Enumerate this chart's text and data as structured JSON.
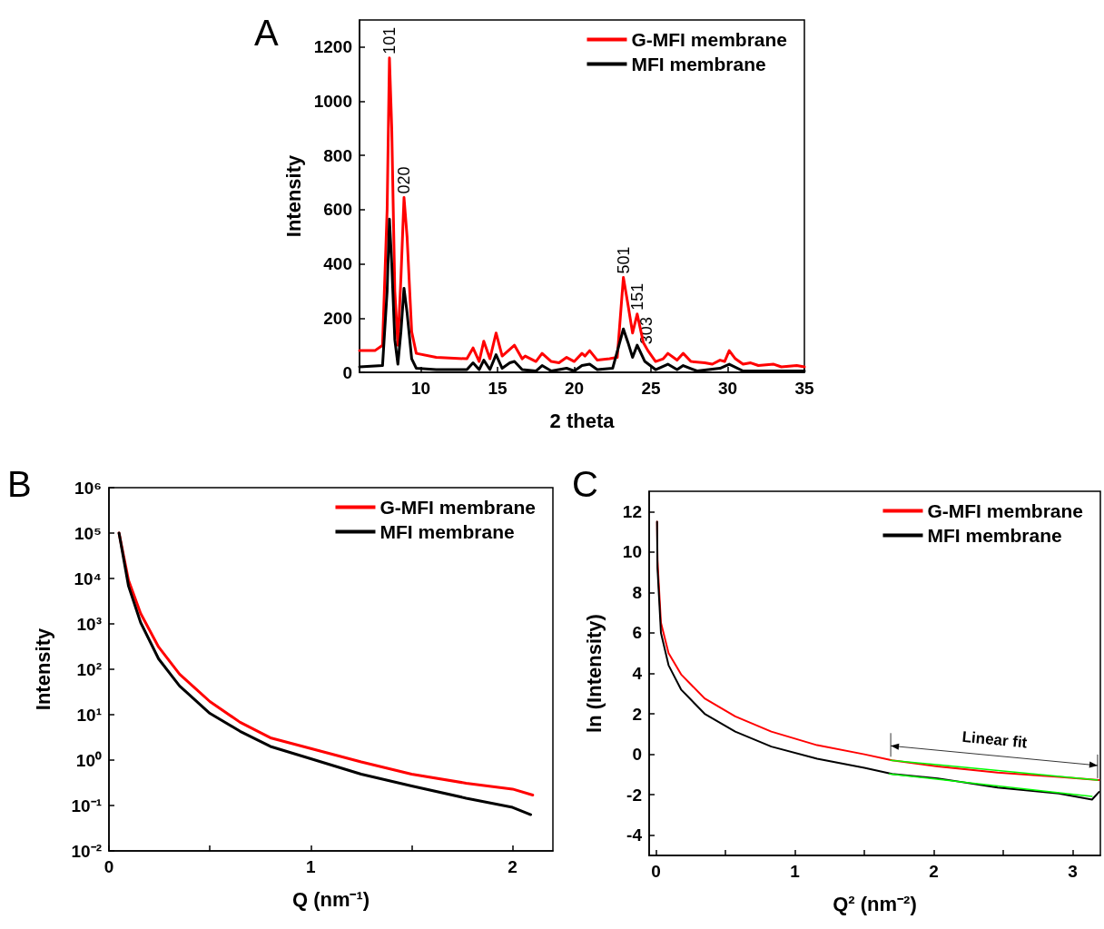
{
  "chart_data": [
    {
      "type": "line",
      "xlabel": "2 theta",
      "ylabel": "Intensity",
      "annotations": [
        "A",
        {
          "text": "101",
          "x": 7.95,
          "y": 1160
        },
        {
          "text": "020",
          "x": 8.9,
          "y": 645
        },
        {
          "text": "501",
          "x": 23.2,
          "y": 350
        },
        {
          "text": "151",
          "x": 24.1,
          "y": 215
        },
        {
          "text": "303",
          "x": 24.7,
          "y": 90
        }
      ],
      "xlim": [
        6,
        35
      ],
      "ylim": [
        0,
        1300
      ],
      "xticks": [
        10,
        15,
        20,
        25,
        30,
        35
      ],
      "yticks": [
        0,
        200,
        400,
        600,
        800,
        1000,
        1200
      ],
      "grid": false,
      "legend": "top right",
      "marker": "none",
      "series": [
        {
          "name": "G-MFI membrane",
          "color": "#ff0000",
          "x": [
            6,
            7,
            7.5,
            7.8,
            7.95,
            8.1,
            8.3,
            8.5,
            8.7,
            8.9,
            9.1,
            9.4,
            9.7,
            11,
            13,
            13.4,
            13.8,
            14.1,
            14.5,
            14.9,
            15.3,
            15.8,
            16.1,
            16.6,
            16.8,
            17.5,
            17.9,
            18.5,
            19,
            19.5,
            20,
            20.5,
            20.7,
            21,
            21.5,
            22.3,
            22.8,
            23.2,
            23.5,
            23.8,
            24.1,
            24.5,
            24.8,
            25.3,
            25.8,
            26.1,
            26.7,
            27.1,
            27.6,
            28.5,
            29,
            29.5,
            29.8,
            30.1,
            30.5,
            31,
            31.5,
            32,
            33,
            33.5,
            34.5,
            35
          ],
          "values": [
            80,
            80,
            100,
            600,
            1160,
            900,
            300,
            100,
            350,
            645,
            500,
            150,
            70,
            55,
            50,
            90,
            40,
            115,
            50,
            145,
            60,
            85,
            100,
            50,
            60,
            40,
            70,
            40,
            35,
            55,
            40,
            70,
            60,
            80,
            45,
            50,
            55,
            350,
            250,
            145,
            215,
            110,
            80,
            40,
            50,
            70,
            45,
            70,
            40,
            35,
            30,
            45,
            40,
            80,
            50,
            30,
            35,
            25,
            30,
            20,
            25,
            20
          ]
        },
        {
          "name": "MFI membrane",
          "color": "#000000",
          "x": [
            6,
            7.5,
            7.8,
            7.95,
            8.1,
            8.3,
            8.5,
            8.7,
            8.9,
            9.1,
            9.4,
            9.7,
            11,
            13,
            13.4,
            13.8,
            14.1,
            14.5,
            14.9,
            15.3,
            15.8,
            16.1,
            16.6,
            17.5,
            17.9,
            18.5,
            19.5,
            20,
            20.5,
            21,
            21.5,
            22.5,
            23.2,
            23.5,
            23.8,
            24.1,
            24.6,
            25.3,
            26.1,
            26.7,
            27.1,
            28,
            29.5,
            30.1,
            31,
            35
          ],
          "values": [
            20,
            25,
            300,
            565,
            400,
            120,
            30,
            150,
            310,
            220,
            50,
            15,
            10,
            10,
            35,
            10,
            45,
            10,
            65,
            15,
            35,
            40,
            10,
            5,
            25,
            5,
            15,
            5,
            25,
            30,
            10,
            15,
            160,
            110,
            55,
            100,
            40,
            10,
            30,
            10,
            25,
            5,
            15,
            30,
            5,
            5
          ]
        }
      ]
    },
    {
      "type": "line",
      "xlabel": "Q (nm⁻¹)",
      "ylabel": "Intensity",
      "annotations": [
        "B"
      ],
      "log": "y",
      "xlim": [
        0,
        2.2
      ],
      "ylim": [
        0.01,
        1000000
      ],
      "xticks": [
        0,
        {
          "value": 0.5,
          "label": null
        },
        1,
        {
          "value": 1.5,
          "label": null
        },
        2
      ],
      "yticks": [
        {
          "value": 0.01,
          "label": "10⁻²"
        },
        {
          "value": 0.1,
          "label": "10⁻¹"
        },
        {
          "value": 1,
          "label": "10⁰"
        },
        {
          "value": 10,
          "label": "10¹"
        },
        {
          "value": 100,
          "label": "10²"
        },
        {
          "value": 1000,
          "label": "10³"
        },
        {
          "value": 10000,
          "label": "10⁴"
        },
        {
          "value": 100000,
          "label": "10⁵"
        },
        {
          "value": 1000000,
          "label": "10⁶"
        }
      ],
      "grid": false,
      "legend": "top right",
      "marker": "none",
      "series": [
        {
          "name": "G-MFI membrane",
          "color": "#ff0000",
          "x": [
            0.05,
            0.097,
            0.157,
            0.246,
            0.35,
            0.5,
            0.65,
            0.8,
            1.0,
            1.25,
            1.5,
            1.77,
            2.0,
            2.1
          ],
          "values": [
            100000,
            9100,
            1700,
            310,
            78,
            19.5,
            6.8,
            3.1,
            1.8,
            0.91,
            0.49,
            0.31,
            0.23,
            0.17
          ]
        },
        {
          "name": "MFI membrane",
          "color": "#000000",
          "x": [
            0.05,
            0.097,
            0.157,
            0.246,
            0.35,
            0.5,
            0.65,
            0.8,
            1.0,
            1.25,
            1.5,
            1.77,
            2.0,
            2.09
          ],
          "values": [
            100000,
            6800,
            1070,
            170,
            43,
            10.7,
            4.3,
            2.0,
            1.07,
            0.49,
            0.27,
            0.145,
            0.091,
            0.063
          ]
        }
      ]
    },
    {
      "type": "line",
      "xlabel": "Q² (nm⁻²)",
      "ylabel": "ln (Intensity)",
      "annotations": [
        "C",
        {
          "text": "Linear fit",
          "x": 2.43,
          "y": -0.78
        }
      ],
      "xlim": [
        -0.05,
        3.2
      ],
      "ylim": [
        -5,
        13
      ],
      "xticks": [
        0,
        {
          "value": 0.5,
          "label": null
        },
        1,
        {
          "value": 1.5,
          "label": null
        },
        2,
        {
          "value": 2.5,
          "label": null
        },
        3
      ],
      "yticks": [
        -4,
        -2,
        0,
        2,
        4,
        6,
        8,
        10,
        12
      ],
      "grid": false,
      "legend": "top right",
      "marker": "none",
      "series": [
        {
          "name": "G-MFI membrane",
          "color": "#ff0000",
          "x": [
            0.007,
            0.01,
            0.035,
            0.09,
            0.18,
            0.35,
            0.57,
            0.83,
            1.16,
            1.5,
            1.7,
            2.03,
            2.46,
            2.9,
            3.19
          ],
          "values": [
            11.5,
            9.6,
            6.5,
            5.0,
            3.95,
            2.76,
            1.87,
            1.12,
            0.45,
            0.0,
            -0.3,
            -0.6,
            -0.9,
            -1.12,
            -1.27
          ]
        },
        {
          "name": "MFI membrane",
          "color": "#000000",
          "x": [
            0.007,
            0.01,
            0.035,
            0.09,
            0.18,
            0.35,
            0.57,
            0.83,
            1.16,
            1.5,
            1.7,
            2.03,
            2.46,
            2.9,
            3.14,
            3.19
          ],
          "values": [
            11.5,
            9.2,
            6.0,
            4.4,
            3.2,
            2.0,
            1.12,
            0.38,
            -0.22,
            -0.67,
            -0.97,
            -1.19,
            -1.64,
            -1.94,
            -2.24,
            -1.86
          ]
        },
        {
          "color": "#00ff00",
          "x": [
            1.69,
            3.18
          ],
          "values": [
            -0.3,
            -1.27
          ]
        },
        {
          "color": "#00ff00",
          "x": [
            1.68,
            3.14
          ],
          "values": [
            -0.97,
            -2.08
          ]
        }
      ]
    }
  ]
}
